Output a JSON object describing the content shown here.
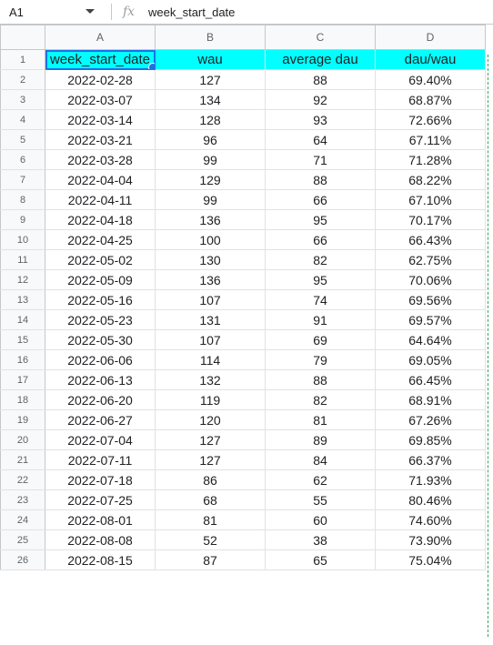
{
  "formula_bar": {
    "cell_ref": "A1",
    "fx_label": "fx",
    "content": "week_start_date"
  },
  "columns": [
    "A",
    "B",
    "C",
    "D"
  ],
  "header": [
    "week_start_date",
    "wau",
    "average dau",
    "dau/wau"
  ],
  "rows": [
    [
      "2022-02-28",
      "127",
      "88",
      "69.40%"
    ],
    [
      "2022-03-07",
      "134",
      "92",
      "68.87%"
    ],
    [
      "2022-03-14",
      "128",
      "93",
      "72.66%"
    ],
    [
      "2022-03-21",
      "96",
      "64",
      "67.11%"
    ],
    [
      "2022-03-28",
      "99",
      "71",
      "71.28%"
    ],
    [
      "2022-04-04",
      "129",
      "88",
      "68.22%"
    ],
    [
      "2022-04-11",
      "99",
      "66",
      "67.10%"
    ],
    [
      "2022-04-18",
      "136",
      "95",
      "70.17%"
    ],
    [
      "2022-04-25",
      "100",
      "66",
      "66.43%"
    ],
    [
      "2022-05-02",
      "130",
      "82",
      "62.75%"
    ],
    [
      "2022-05-09",
      "136",
      "95",
      "70.06%"
    ],
    [
      "2022-05-16",
      "107",
      "74",
      "69.56%"
    ],
    [
      "2022-05-23",
      "131",
      "91",
      "69.57%"
    ],
    [
      "2022-05-30",
      "107",
      "69",
      "64.64%"
    ],
    [
      "2022-06-06",
      "114",
      "79",
      "69.05%"
    ],
    [
      "2022-06-13",
      "132",
      "88",
      "66.45%"
    ],
    [
      "2022-06-20",
      "119",
      "82",
      "68.91%"
    ],
    [
      "2022-06-27",
      "120",
      "81",
      "67.26%"
    ],
    [
      "2022-07-04",
      "127",
      "89",
      "69.85%"
    ],
    [
      "2022-07-11",
      "127",
      "84",
      "66.37%"
    ],
    [
      "2022-07-18",
      "86",
      "62",
      "71.93%"
    ],
    [
      "2022-07-25",
      "68",
      "55",
      "80.46%"
    ],
    [
      "2022-08-01",
      "81",
      "60",
      "74.60%"
    ],
    [
      "2022-08-08",
      "52",
      "38",
      "73.90%"
    ],
    [
      "2022-08-15",
      "87",
      "65",
      "75.04%"
    ]
  ],
  "colors": {
    "header_fill": "#00ffff",
    "selection": "#1a73e8"
  }
}
